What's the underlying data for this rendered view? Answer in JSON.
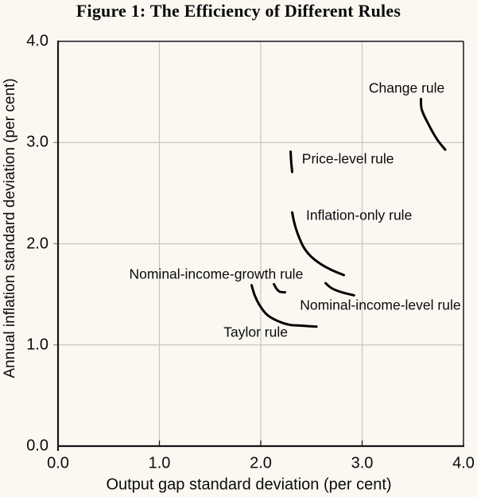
{
  "figure": {
    "title": "Figure 1: The Efficiency of Different Rules"
  },
  "chart_data": {
    "type": "line",
    "title": "Figure 1: The Efficiency of Different Rules",
    "xlabel": "Output gap standard deviation (per cent)",
    "ylabel": "Annual inflation standard deviation (per cent)",
    "xlim": [
      0.0,
      4.0
    ],
    "ylim": [
      0.0,
      4.0
    ],
    "x_ticks": [
      0,
      1,
      2,
      3,
      4
    ],
    "y_ticks": [
      0,
      1,
      2,
      3,
      4
    ],
    "x_tick_labels": [
      "0.0",
      "1.0",
      "2.0",
      "3.0",
      "4.0"
    ],
    "y_tick_labels": [
      "0.0",
      "1.0",
      "2.0",
      "3.0",
      "4.0"
    ],
    "grid": true,
    "legend": "inline-labels",
    "line_color": "#000000",
    "grid_color": "#c9c5bf",
    "axis_color": "#16161a",
    "background": "#fbf8f2",
    "series": [
      {
        "name": "Change rule",
        "points": [
          [
            3.58,
            3.43
          ],
          [
            3.59,
            3.32
          ],
          [
            3.66,
            3.17
          ],
          [
            3.74,
            3.03
          ],
          [
            3.82,
            2.93
          ]
        ],
        "label_anchor": [
          3.44,
          3.54
        ]
      },
      {
        "name": "Price-level rule",
        "points": [
          [
            2.295,
            2.91
          ],
          [
            2.3,
            2.81
          ],
          [
            2.31,
            2.71
          ]
        ],
        "label_anchor": [
          2.86,
          2.84
        ]
      },
      {
        "name": "Inflation-only rule",
        "points": [
          [
            2.31,
            2.31
          ],
          [
            2.33,
            2.21
          ],
          [
            2.36,
            2.11
          ],
          [
            2.42,
            1.97
          ],
          [
            2.49,
            1.88
          ],
          [
            2.59,
            1.8
          ],
          [
            2.7,
            1.74
          ],
          [
            2.82,
            1.69
          ]
        ],
        "label_anchor": [
          2.97,
          2.28
        ]
      },
      {
        "name": "Nominal-income-growth rule",
        "points": [
          [
            2.13,
            1.6
          ],
          [
            2.16,
            1.55
          ],
          [
            2.19,
            1.525
          ],
          [
            2.24,
            1.52
          ]
        ],
        "label_anchor": [
          1.56,
          1.7
        ]
      },
      {
        "name": "Nominal-income-level rule",
        "points": [
          [
            2.64,
            1.61
          ],
          [
            2.7,
            1.56
          ],
          [
            2.8,
            1.52
          ],
          [
            2.92,
            1.49
          ]
        ],
        "label_anchor": [
          3.18,
          1.39
        ]
      },
      {
        "name": "Taylor rule",
        "points": [
          [
            1.91,
            1.59
          ],
          [
            1.94,
            1.49
          ],
          [
            1.99,
            1.39
          ],
          [
            2.06,
            1.3
          ],
          [
            2.16,
            1.24
          ],
          [
            2.28,
            1.2
          ],
          [
            2.41,
            1.19
          ],
          [
            2.55,
            1.18
          ]
        ],
        "label_anchor": [
          1.95,
          1.12
        ]
      }
    ]
  }
}
